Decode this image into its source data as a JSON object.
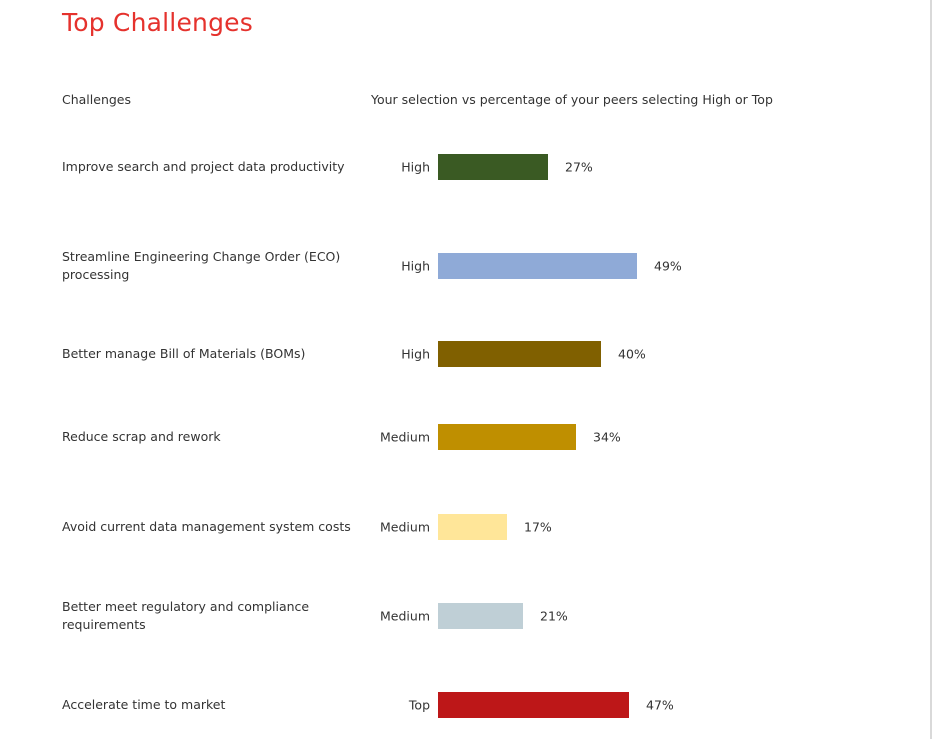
{
  "page": {
    "title": "Top Challenges",
    "col_challenges": "Challenges",
    "col_selection": "Your selection vs percentage of your peers selecting High or Top"
  },
  "chart_data": {
    "type": "bar",
    "orientation": "horizontal",
    "title": "Top Challenges",
    "xlabel": "Your selection vs percentage of your peers selecting High or Top",
    "ylabel": "Challenges",
    "xlim": [
      0,
      100
    ],
    "grid": false,
    "categories": [
      "Improve search and project data productivity",
      "Streamline Engineering Change Order (ECO) processing",
      "Better manage Bill of Materials (BOMs)",
      "Reduce scrap and rework",
      "Avoid current data management system costs",
      "Better meet regulatory and compliance requirements",
      "Accelerate time to market"
    ],
    "selections": [
      "High",
      "High",
      "High",
      "Medium",
      "Medium",
      "Medium",
      "Top"
    ],
    "values": [
      27,
      49,
      40,
      34,
      17,
      21,
      47
    ],
    "value_labels": [
      "27%",
      "49%",
      "40%",
      "34%",
      "17%",
      "21%",
      "47%"
    ],
    "colors": [
      "#3a5a23",
      "#8faad7",
      "#806000",
      "#bf8f00",
      "#ffe699",
      "#bfcfd6",
      "#bd1718"
    ]
  }
}
